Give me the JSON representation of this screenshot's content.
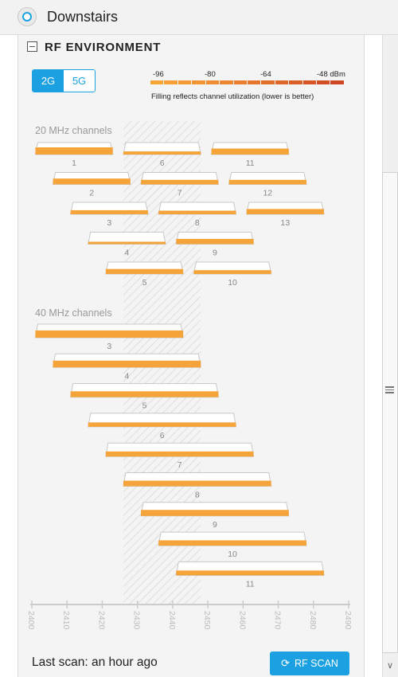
{
  "header": {
    "title": "Downstairs",
    "icon": "device-ring-icon"
  },
  "section": {
    "title": "RF ENVIRONMENT"
  },
  "band_toggle": {
    "options": [
      "2G",
      "5G"
    ],
    "selected": "2G"
  },
  "legend": {
    "labels": [
      "-96",
      "-80",
      "-64",
      "-48 dBm"
    ],
    "label_values": [
      -96,
      -80,
      -64,
      -48
    ],
    "note": "Filling reflects channel utilization (lower is better)",
    "colors": [
      "#f6a636",
      "#f6a037",
      "#f49a34",
      "#f19433",
      "#ee8d33",
      "#ec8731",
      "#e97f2f",
      "#e6782d",
      "#e2702b",
      "#de6829",
      "#da6027",
      "#d65725",
      "#d24f23",
      "#cf4722"
    ]
  },
  "chart_data": [
    {
      "type": "bar",
      "group_label": "20 MHz channels",
      "x_unit": "MHz",
      "channels": [
        {
          "label": "1",
          "start": 2401,
          "end": 2423,
          "fill": 1.0
        },
        {
          "label": "2",
          "start": 2406,
          "end": 2428,
          "fill": 0.72
        },
        {
          "label": "3",
          "start": 2411,
          "end": 2433,
          "fill": 0.35
        },
        {
          "label": "4",
          "start": 2416,
          "end": 2438,
          "fill": 0.0
        },
        {
          "label": "5",
          "start": 2421,
          "end": 2443,
          "fill": 0.55
        },
        {
          "label": "6",
          "start": 2426,
          "end": 2448,
          "fill": 0.15
        },
        {
          "label": "7",
          "start": 2431,
          "end": 2453,
          "fill": 0.45
        },
        {
          "label": "8",
          "start": 2436,
          "end": 2458,
          "fill": 0.25
        },
        {
          "label": "9",
          "start": 2441,
          "end": 2463,
          "fill": 0.6
        },
        {
          "label": "10",
          "start": 2446,
          "end": 2468,
          "fill": 0.3
        },
        {
          "label": "11",
          "start": 2451,
          "end": 2473,
          "fill": 0.75
        },
        {
          "label": "12",
          "start": 2456,
          "end": 2478,
          "fill": 0.45
        },
        {
          "label": "13",
          "start": 2461,
          "end": 2483,
          "fill": 0.6
        }
      ]
    },
    {
      "type": "bar",
      "group_label": "40 MHz channels",
      "x_unit": "MHz",
      "channels": [
        {
          "label": "3",
          "start": 2401,
          "end": 2443,
          "fill": 0.85
        },
        {
          "label": "4",
          "start": 2406,
          "end": 2448,
          "fill": 0.75
        },
        {
          "label": "5",
          "start": 2411,
          "end": 2453,
          "fill": 0.55
        },
        {
          "label": "6",
          "start": 2416,
          "end": 2458,
          "fill": 0.25
        },
        {
          "label": "7",
          "start": 2421,
          "end": 2463,
          "fill": 0.4
        },
        {
          "label": "8",
          "start": 2426,
          "end": 2468,
          "fill": 0.5
        },
        {
          "label": "9",
          "start": 2431,
          "end": 2473,
          "fill": 0.6
        },
        {
          "label": "10",
          "start": 2436,
          "end": 2478,
          "fill": 0.45
        },
        {
          "label": "11",
          "start": 2441,
          "end": 2483,
          "fill": 0.35
        }
      ]
    }
  ],
  "x_axis": {
    "ticks": [
      "2400",
      "2410",
      "2420",
      "2430",
      "2440",
      "2450",
      "2460",
      "2470",
      "2480",
      "2490"
    ],
    "min": 2400,
    "max": 2490
  },
  "current_channel_range": {
    "start": 2426,
    "end": 2448
  },
  "footer": {
    "last_scan": "Last scan: an hour ago",
    "scan_button": "RF SCAN"
  },
  "colors": {
    "accent": "#1ba1e2",
    "bar_fill": "#f5a43a",
    "bar_outline": "#c8c8c8"
  }
}
